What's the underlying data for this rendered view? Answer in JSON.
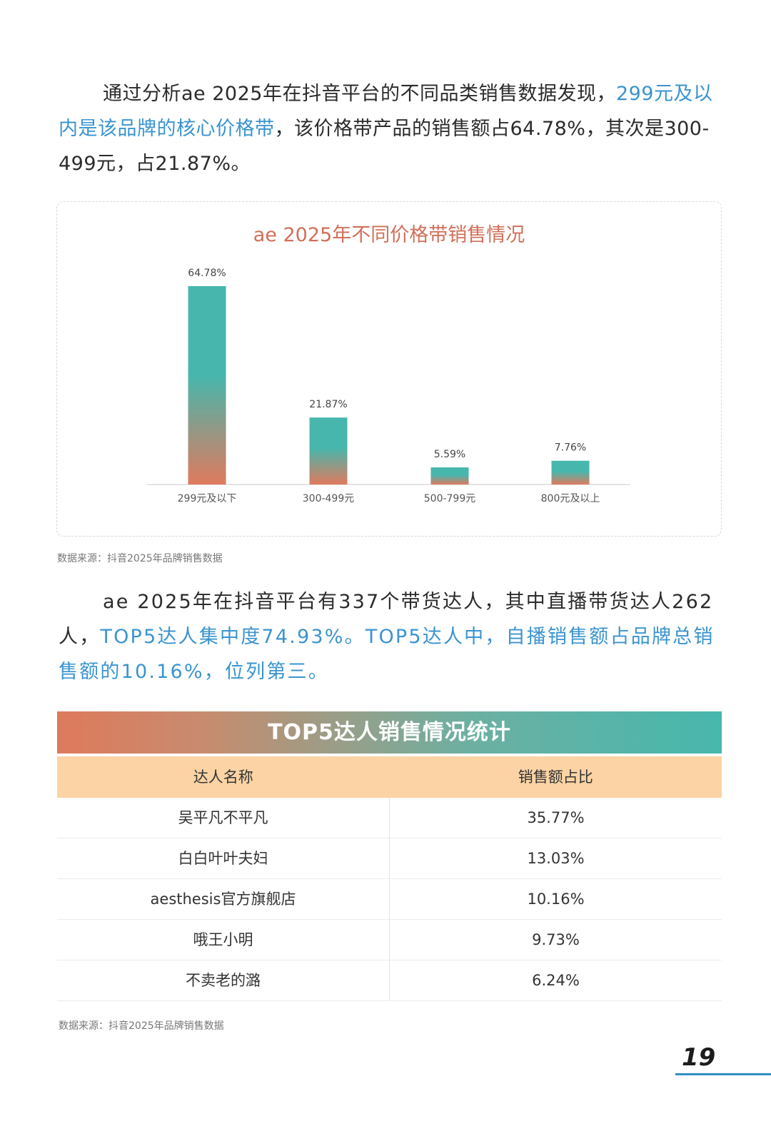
{
  "paragraph1": {
    "part1": "通过分析ae  2025年在抖音平台的不同品类销售数据发现，",
    "highlight": "299元及以内是该品牌的核心价格带",
    "part2": "，该价格带产品的销售额占64.78%，其次是300-499元，占21.87%。"
  },
  "chart_data": {
    "type": "bar",
    "title": "ae 2025年不同价格带销售情况",
    "categories": [
      "299元及以下",
      "300-499元",
      "500-799元",
      "800元及以上"
    ],
    "values": [
      64.78,
      21.87,
      5.59,
      7.76
    ],
    "value_labels": [
      "64.78%",
      "21.87%",
      "5.59%",
      "7.76%"
    ],
    "unit": "%",
    "ylim": [
      0,
      70
    ],
    "grid": false,
    "legend": "none",
    "colors": {
      "bar_top": "#47b7ad",
      "bar_bottom": "#df7a5e",
      "axis": "#dcdcdc",
      "title": "#d0705a"
    }
  },
  "source1": "数据来源：抖音2025年品牌销售数据",
  "paragraph2": {
    "part1": "ae  2025年在抖音平台有337个带货达人，其中直播带货达人262人，",
    "highlight": "TOP5达人集中度74.93%。TOP5达人中，自播销售额占品牌总销售额的10.16%，位列第三。"
  },
  "table": {
    "title": "TOP5达人销售情况统计",
    "headers": [
      "达人名称",
      "销售额占比"
    ],
    "rows": [
      [
        "吴平凡不平凡",
        "35.77%"
      ],
      [
        "白白叶叶夫妇",
        "13.03%"
      ],
      [
        "aesthesis官方旗舰店",
        "10.16%"
      ],
      [
        "哦王小明",
        "9.73%"
      ],
      [
        "不卖老的潞",
        "6.24%"
      ]
    ]
  },
  "source2": "数据来源：抖音2025年品牌销售数据",
  "page_number": "19"
}
